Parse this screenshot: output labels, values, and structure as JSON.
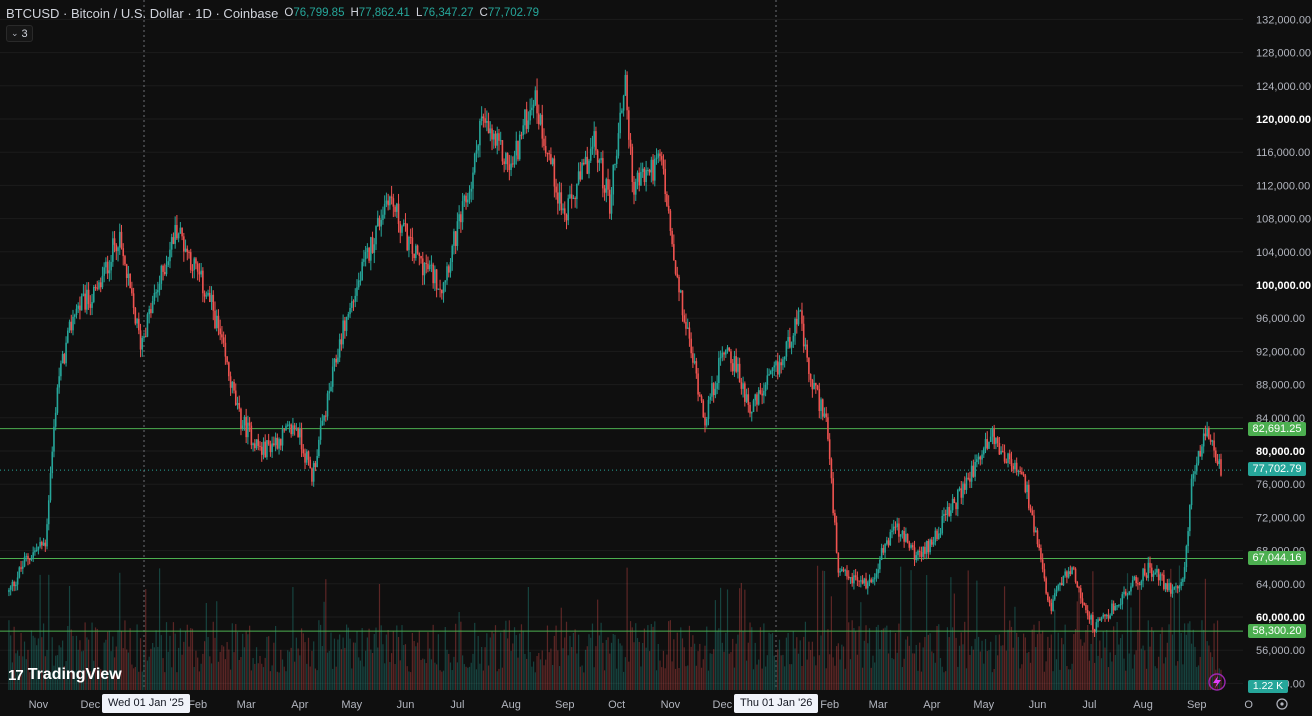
{
  "symbol_header": {
    "title": "BTCUSD · Bitcoin / U.S. Dollar · 1D · Coinbase",
    "ohlc": [
      {
        "label": "O",
        "value": "76,799.85"
      },
      {
        "label": "H",
        "value": "77,862.41"
      },
      {
        "label": "L",
        "value": "76,347.27"
      },
      {
        "label": "C",
        "value": "77,702.79"
      }
    ]
  },
  "indicator_toggle": {
    "count": "3",
    "icon": "chevron-down-icon"
  },
  "price_axis": {
    "ticks": [
      {
        "value": 132000,
        "label": "132,000.00",
        "bold": false
      },
      {
        "value": 128000,
        "label": "128,000.00",
        "bold": false
      },
      {
        "value": 124000,
        "label": "124,000.00",
        "bold": false
      },
      {
        "value": 120000,
        "label": "120,000.00",
        "bold": true
      },
      {
        "value": 116000,
        "label": "116,000.00",
        "bold": false
      },
      {
        "value": 112000,
        "label": "112,000.00",
        "bold": false
      },
      {
        "value": 108000,
        "label": "108,000.00",
        "bold": false
      },
      {
        "value": 104000,
        "label": "104,000.00",
        "bold": false
      },
      {
        "value": 100000,
        "label": "100,000.00",
        "bold": true
      },
      {
        "value": 96000,
        "label": "96,000.00",
        "bold": false
      },
      {
        "value": 92000,
        "label": "92,000.00",
        "bold": false
      },
      {
        "value": 88000,
        "label": "88,000.00",
        "bold": false
      },
      {
        "value": 84000,
        "label": "84,000.00",
        "bold": false
      },
      {
        "value": 80000,
        "label": "80,000.00",
        "bold": true
      },
      {
        "value": 76000,
        "label": "76,000.00",
        "bold": false
      },
      {
        "value": 72000,
        "label": "72,000.00",
        "bold": false
      },
      {
        "value": 68000,
        "label": "68,000.00",
        "bold": false
      },
      {
        "value": 64000,
        "label": "64,000.00",
        "bold": false
      },
      {
        "value": 60000,
        "label": "60,000.00",
        "bold": true
      },
      {
        "value": 56000,
        "label": "56,000.00",
        "bold": false
      },
      {
        "value": 52000,
        "label": "52,000.00",
        "bold": false
      }
    ]
  },
  "time_axis": {
    "labels": [
      "Nov",
      "Dec",
      "Feb",
      "Mar",
      "Apr",
      "May",
      "Jun",
      "Jul",
      "Aug",
      "Sep",
      "Oct",
      "Nov",
      "Dec",
      "Feb",
      "Mar",
      "Apr",
      "May",
      "Jun",
      "Jul",
      "Aug",
      "Sep",
      "O"
    ],
    "crosshair_dates": [
      "Wed 01 Jan '25",
      "Thu 01 Jan '26"
    ]
  },
  "horizontal_lines": [
    {
      "price": 82691.25,
      "label": "82,691.25"
    },
    {
      "price": 67044.16,
      "label": "67,044.16"
    },
    {
      "price": 58300.2,
      "label": "58,300.20"
    }
  ],
  "last_price": {
    "price": 77702.79,
    "label": "77,702.79"
  },
  "volume": {
    "label": "1.22 K"
  },
  "brand": {
    "name": "TradingView",
    "logo": "17"
  },
  "colors": {
    "background": "#0f0f0f",
    "up": "#26a69a",
    "down": "#ef5350",
    "hline": "#4caf50",
    "grid": "#1c1c1c",
    "axis_text": "#b2b5be"
  },
  "chart_data": {
    "type": "candlestick",
    "title": "BTCUSD · Bitcoin / U.S. Dollar · 1D · Coinbase",
    "ylim": [
      50000,
      134000
    ],
    "x_range": [
      "2024-10-15",
      "2026-10-05"
    ],
    "close_path": [
      [
        "2024-10-15",
        63000
      ],
      [
        "2024-10-25",
        67000
      ],
      [
        "2024-11-05",
        69000
      ],
      [
        "2024-11-12",
        88000
      ],
      [
        "2024-11-22",
        97000
      ],
      [
        "2024-12-05",
        99000
      ],
      [
        "2024-12-17",
        106000
      ],
      [
        "2024-12-30",
        93000
      ],
      [
        "2025-01-20",
        107000
      ],
      [
        "2025-02-10",
        97000
      ],
      [
        "2025-02-25",
        84000
      ],
      [
        "2025-03-10",
        80000
      ],
      [
        "2025-03-30",
        83000
      ],
      [
        "2025-04-08",
        77000
      ],
      [
        "2025-04-25",
        94000
      ],
      [
        "2025-05-22",
        111000
      ],
      [
        "2025-06-05",
        104000
      ],
      [
        "2025-06-22",
        100000
      ],
      [
        "2025-07-10",
        113000
      ],
      [
        "2025-07-14",
        120000
      ],
      [
        "2025-08-01",
        114000
      ],
      [
        "2025-08-14",
        123000
      ],
      [
        "2025-09-01",
        108000
      ],
      [
        "2025-09-18",
        117000
      ],
      [
        "2025-09-27",
        110000
      ],
      [
        "2025-10-06",
        125000
      ],
      [
        "2025-10-10",
        112000
      ],
      [
        "2025-10-27",
        115000
      ],
      [
        "2025-11-04",
        101000
      ],
      [
        "2025-11-21",
        84000
      ],
      [
        "2025-12-03",
        93000
      ],
      [
        "2025-12-18",
        85000
      ],
      [
        "2026-01-05",
        91000
      ],
      [
        "2026-01-14",
        97000
      ],
      [
        "2026-01-20",
        89000
      ],
      [
        "2026-01-30",
        84000
      ],
      [
        "2026-02-06",
        65000
      ],
      [
        "2026-02-24",
        64000
      ],
      [
        "2026-03-10",
        71000
      ],
      [
        "2026-03-25",
        67000
      ],
      [
        "2026-04-18",
        75000
      ],
      [
        "2026-05-05",
        82000
      ],
      [
        "2026-05-25",
        76000
      ],
      [
        "2026-06-08",
        61000
      ],
      [
        "2026-06-20",
        66000
      ],
      [
        "2026-07-04",
        58500
      ],
      [
        "2026-07-25",
        63500
      ],
      [
        "2026-08-05",
        66000
      ],
      [
        "2026-08-15",
        63500
      ],
      [
        "2026-08-24",
        64000
      ],
      [
        "2026-08-30",
        78000
      ],
      [
        "2026-09-07",
        82000
      ],
      [
        "2026-09-16",
        77500
      ]
    ]
  }
}
